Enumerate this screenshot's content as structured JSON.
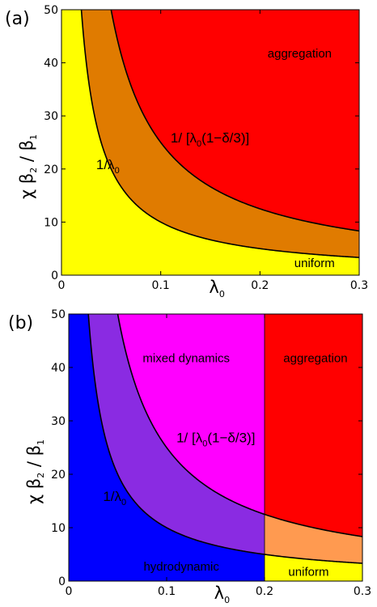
{
  "chart_data": [
    {
      "type": "area",
      "panel_label": "(a)",
      "xlim": [
        0,
        0.3
      ],
      "ylim": [
        0,
        50
      ],
      "xticks": [
        "0",
        "0.1",
        "0.2",
        "0.3"
      ],
      "yticks": [
        "0",
        "10",
        "20",
        "30",
        "40",
        "50"
      ],
      "xlabel": {
        "main": "λ",
        "sub": "0"
      },
      "ylabel": {
        "main": "χ β",
        "sub1": "2",
        "mid": " / β",
        "sub2": "1"
      },
      "curves": [
        {
          "label_parts": [
            "1/λ",
            "0",
            ""
          ],
          "formula": "1/x",
          "label_pos": [
            0.035,
            20
          ]
        },
        {
          "label_parts": [
            "1/ [λ",
            "0",
            "(1−δ/3)]"
          ],
          "formula": "1/(x*(1-delta/3))",
          "delta": 1.8,
          "label_pos": [
            0.11,
            25
          ]
        }
      ],
      "regions": [
        {
          "label": "aggregation",
          "label_pos": [
            0.24,
            41
          ]
        },
        {
          "label": "uniform",
          "label_pos": [
            0.255,
            1.5
          ]
        }
      ],
      "colors": {
        "below": "#ffff00",
        "band": "#e07b00",
        "above": "#ff0000"
      }
    },
    {
      "type": "area",
      "panel_label": "(b)",
      "xlim": [
        0,
        0.3
      ],
      "ylim": [
        0,
        50
      ],
      "xticks": [
        "0",
        "0.1",
        "0.2",
        "0.3"
      ],
      "yticks": [
        "0",
        "10",
        "20",
        "30",
        "40",
        "50"
      ],
      "xlabel": {
        "main": "λ",
        "sub": "0"
      },
      "ylabel": {
        "main": "χ β",
        "sub1": "2",
        "mid": " / β",
        "sub2": "1"
      },
      "split_x": 0.2,
      "curves": [
        {
          "label_parts": [
            "1/λ",
            "0",
            ""
          ],
          "formula": "1/x",
          "label_pos": [
            0.035,
            15
          ]
        },
        {
          "label_parts": [
            "1/ [λ",
            "0",
            "(1−δ/3)]"
          ],
          "formula": "1/(x*(1-delta/3))",
          "delta": 1.8,
          "label_pos": [
            0.11,
            26
          ]
        }
      ],
      "regions": [
        {
          "label": "mixed dynamics",
          "label_pos": [
            0.12,
            41
          ]
        },
        {
          "label": "aggregation",
          "label_pos": [
            0.252,
            41
          ]
        },
        {
          "label": "hydrodynamic",
          "label_pos": [
            0.115,
            2
          ]
        },
        {
          "label": "uniform",
          "label_pos": [
            0.245,
            1
          ]
        }
      ],
      "colors": {
        "left_below": "#0000ff",
        "left_band": "#8a2be2",
        "left_above": "#ff00ff",
        "right_below": "#ffff00",
        "right_band": "#ff9a50",
        "right_above": "#ff0000"
      }
    }
  ]
}
